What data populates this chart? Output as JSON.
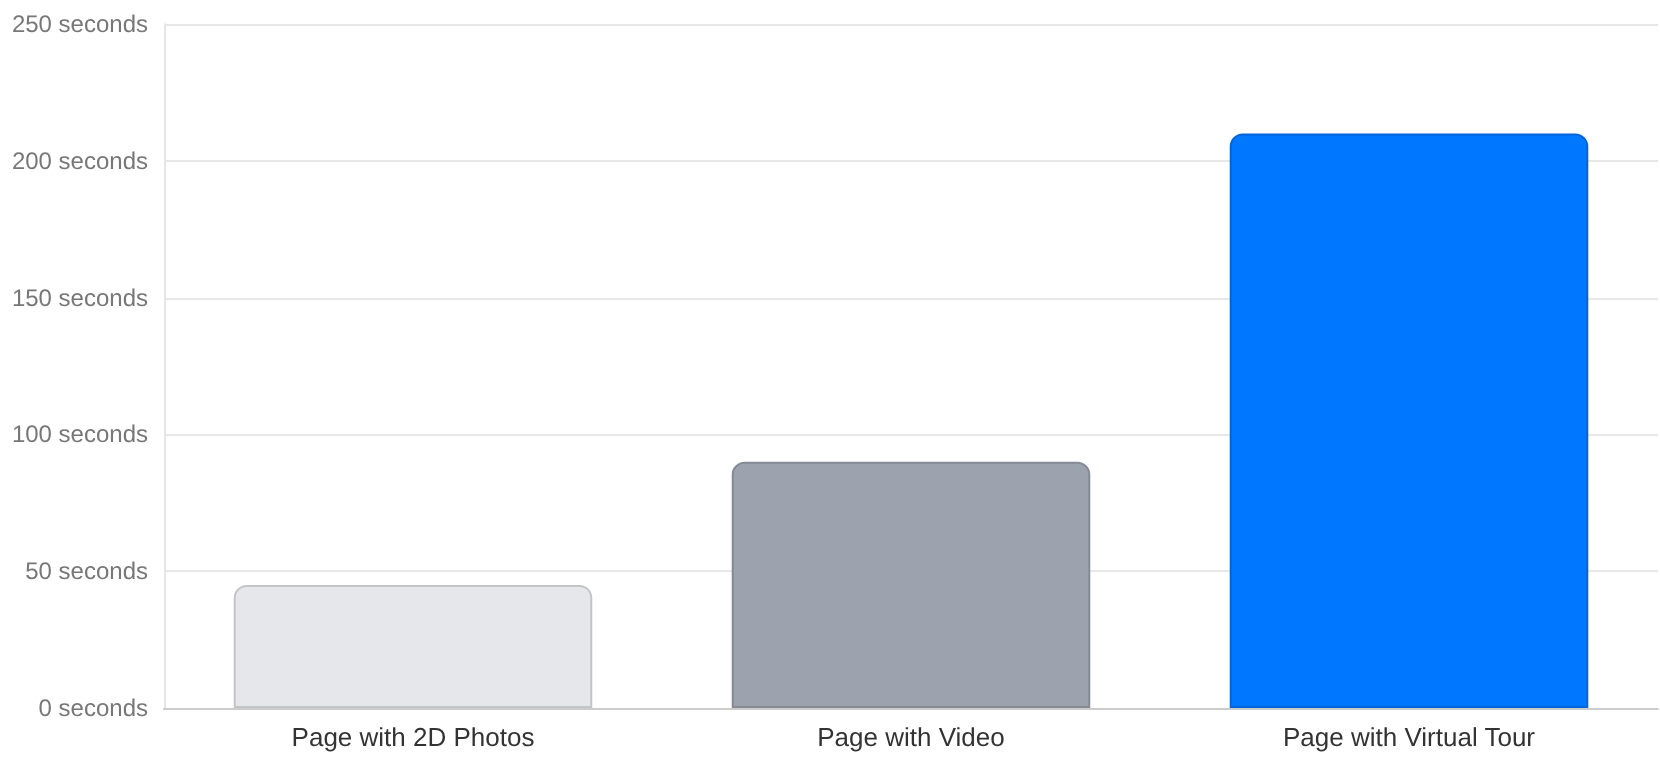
{
  "chart_data": {
    "type": "bar",
    "categories": [
      "Page with 2D Photos",
      "Page with Video",
      "Page with Virtual Tour"
    ],
    "values": [
      45,
      90,
      210
    ],
    "colors": [
      "#e5e7eb",
      "#9ca3af",
      "#0077ff"
    ],
    "ylim": [
      0,
      250
    ],
    "yticks": [
      {
        "value": 0,
        "label": "0 seconds"
      },
      {
        "value": 50,
        "label": "50 seconds"
      },
      {
        "value": 100,
        "label": "100 seconds"
      },
      {
        "value": 150,
        "label": "150 seconds"
      },
      {
        "value": 200,
        "label": "200 seconds"
      },
      {
        "value": 250,
        "label": "250 seconds"
      }
    ],
    "grid": "y"
  }
}
